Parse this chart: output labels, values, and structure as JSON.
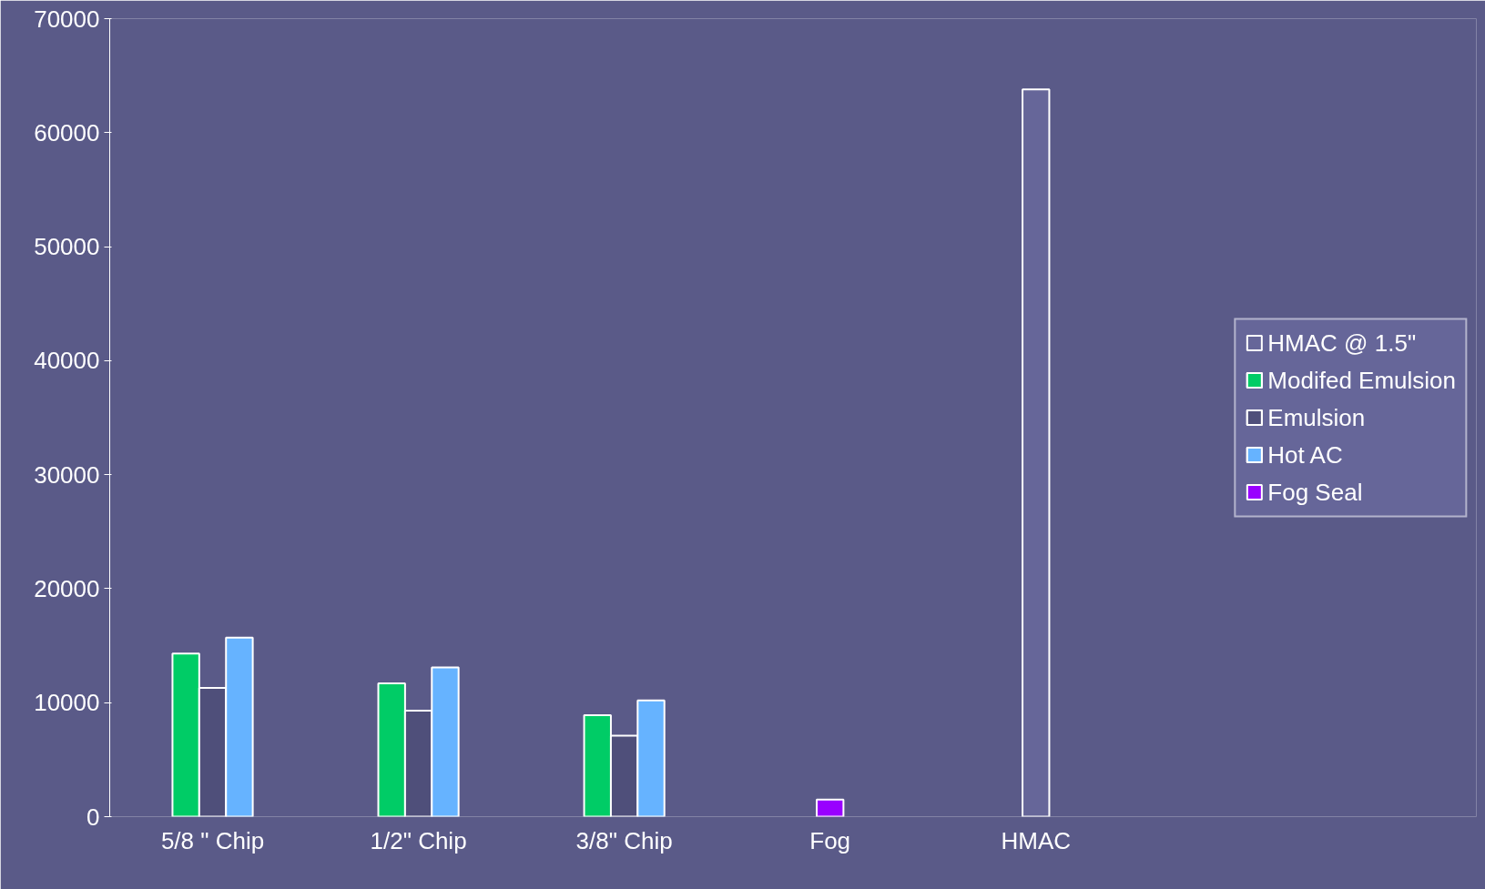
{
  "chart_data": {
    "type": "bar",
    "categories": [
      "5/8 \" Chip",
      "1/2\" Chip",
      "3/8\" Chip",
      "Fog",
      "HMAC"
    ],
    "series": [
      {
        "name": "HMAC @ 1.5\"",
        "color": "#666699",
        "values": [
          null,
          null,
          null,
          null,
          63800
        ]
      },
      {
        "name": "Modifed Emulsion",
        "color": "#00cc66",
        "values": [
          14300,
          11700,
          8900,
          null,
          null
        ]
      },
      {
        "name": "Emulsion",
        "color": "#4f4f7a",
        "values": [
          11300,
          9300,
          7100,
          null,
          null
        ]
      },
      {
        "name": "Hot AC",
        "color": "#66b3ff",
        "values": [
          15700,
          13100,
          10200,
          null,
          null
        ]
      },
      {
        "name": "Fog Seal",
        "color": "#9900ff",
        "values": [
          null,
          null,
          null,
          1500,
          null
        ]
      }
    ],
    "ylim": [
      0,
      70000
    ],
    "yticks": [
      0,
      10000,
      20000,
      30000,
      40000,
      50000,
      60000,
      70000
    ],
    "grid": false,
    "legend": "right"
  }
}
